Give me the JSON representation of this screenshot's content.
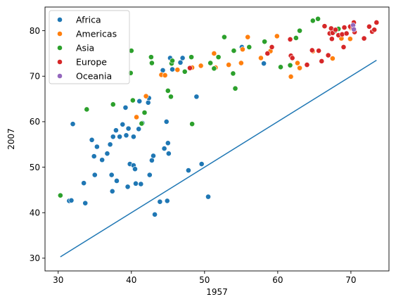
{
  "chart_data": {
    "type": "scatter",
    "xlabel": "1957",
    "ylabel": "2007",
    "xlim": [
      28.2,
      75.2
    ],
    "ylim": [
      27.2,
      85.2
    ],
    "xticks": [
      30,
      40,
      50,
      60,
      70
    ],
    "yticks": [
      30,
      40,
      50,
      60,
      70,
      80
    ],
    "grid": false,
    "legend_position": "top-left",
    "reference_line": {
      "x": [
        30.3,
        73.5
      ],
      "y": [
        30.3,
        73.5
      ],
      "color": "#1f77b4"
    },
    "series": [
      {
        "name": "Africa",
        "color": "#1f77b4",
        "points": [
          [
            31.5,
            42.6
          ],
          [
            31.8,
            42.7
          ],
          [
            32.0,
            59.5
          ],
          [
            33.5,
            46.5
          ],
          [
            33.7,
            42.1
          ],
          [
            34.6,
            56.0
          ],
          [
            34.9,
            52.4
          ],
          [
            35.0,
            48.3
          ],
          [
            35.3,
            54.5
          ],
          [
            36.0,
            51.6
          ],
          [
            36.7,
            53.0
          ],
          [
            37.1,
            55.0
          ],
          [
            37.3,
            48.3
          ],
          [
            37.4,
            44.7
          ],
          [
            37.5,
            56.7
          ],
          [
            37.9,
            58.1
          ],
          [
            38.0,
            47.0
          ],
          [
            38.4,
            56.7
          ],
          [
            38.8,
            59.4
          ],
          [
            39.2,
            63.1
          ],
          [
            39.3,
            57.0
          ],
          [
            39.5,
            45.7
          ],
          [
            39.6,
            58.5
          ],
          [
            39.8,
            50.7
          ],
          [
            40.3,
            56.7
          ],
          [
            40.3,
            50.4
          ],
          [
            40.5,
            49.6
          ],
          [
            40.6,
            46.4
          ],
          [
            41.0,
            58.4
          ],
          [
            41.1,
            64.5
          ],
          [
            41.3,
            46.3
          ],
          [
            41.5,
            59.7
          ],
          [
            42.3,
            64.2
          ],
          [
            42.4,
            65.2
          ],
          [
            42.5,
            48.3
          ],
          [
            42.8,
            51.5
          ],
          [
            43.0,
            52.5
          ],
          [
            43.2,
            39.6
          ],
          [
            43.9,
            42.4
          ],
          [
            44.3,
            71.3
          ],
          [
            44.5,
            54.1
          ],
          [
            44.8,
            60.0
          ],
          [
            44.9,
            42.6
          ],
          [
            45.0,
            55.3
          ],
          [
            45.1,
            53.0
          ],
          [
            45.3,
            74.0
          ],
          [
            45.6,
            71.5
          ],
          [
            46.7,
            73.0
          ],
          [
            47.0,
            74.0
          ],
          [
            47.8,
            49.3
          ],
          [
            48.9,
            65.5
          ],
          [
            49.6,
            50.7
          ],
          [
            50.5,
            43.5
          ],
          [
            55.1,
            76.4
          ],
          [
            58.1,
            72.8
          ]
        ]
      },
      {
        "name": "Americas",
        "color": "#ff7f0e",
        "points": [
          [
            40.7,
            61.0
          ],
          [
            42.0,
            65.6
          ],
          [
            44.1,
            70.3
          ],
          [
            44.6,
            70.2
          ],
          [
            45.5,
            73.0
          ],
          [
            46.3,
            71.4
          ],
          [
            48.3,
            71.9
          ],
          [
            49.5,
            72.3
          ],
          [
            51.3,
            75.0
          ],
          [
            51.5,
            71.9
          ],
          [
            53.3,
            72.5
          ],
          [
            55.0,
            72.9
          ],
          [
            55.2,
            75.9
          ],
          [
            55.9,
            78.6
          ],
          [
            57.7,
            74.0
          ],
          [
            59.0,
            75.5
          ],
          [
            59.9,
            78.8
          ],
          [
            61.8,
            69.9
          ],
          [
            62.7,
            72.9
          ],
          [
            63.0,
            71.8
          ],
          [
            64.8,
            75.5
          ],
          [
            67.5,
            73.9
          ],
          [
            68.7,
            78.3
          ],
          [
            69.9,
            78.2
          ],
          [
            70.0,
            80.6
          ]
        ]
      },
      {
        "name": "Asia",
        "color": "#2ca02c",
        "points": [
          [
            30.3,
            43.8
          ],
          [
            33.9,
            62.7
          ],
          [
            37.5,
            63.8
          ],
          [
            39.9,
            70.7
          ],
          [
            40.0,
            75.6
          ],
          [
            40.2,
            64.7
          ],
          [
            41.4,
            59.6
          ],
          [
            41.8,
            62.0
          ],
          [
            42.7,
            74.2
          ],
          [
            42.8,
            72.9
          ],
          [
            45.0,
            66.8
          ],
          [
            45.4,
            65.5
          ],
          [
            45.5,
            72.8
          ],
          [
            45.6,
            73.4
          ],
          [
            47.3,
            71.0
          ],
          [
            48.2,
            74.2
          ],
          [
            48.3,
            59.5
          ],
          [
            50.8,
            72.9
          ],
          [
            51.3,
            71.7
          ],
          [
            51.9,
            74.2
          ],
          [
            52.7,
            78.6
          ],
          [
            53.9,
            70.6
          ],
          [
            54.0,
            75.6
          ],
          [
            54.2,
            67.3
          ],
          [
            56.1,
            76.4
          ],
          [
            58.2,
            77.6
          ],
          [
            60.4,
            72.0
          ],
          [
            61.7,
            72.4
          ],
          [
            62.5,
            78.4
          ],
          [
            63.0,
            80.0
          ],
          [
            64.8,
            82.2
          ],
          [
            65.5,
            82.6
          ],
          [
            67.8,
            79.9
          ],
          [
            68.3,
            80.4
          ]
        ]
      },
      {
        "name": "Europe",
        "color": "#d62728",
        "points": [
          [
            48.0,
            71.8
          ],
          [
            58.6,
            75.0
          ],
          [
            59.2,
            76.4
          ],
          [
            61.7,
            78.1
          ],
          [
            61.8,
            74.5
          ],
          [
            62.0,
            74.0
          ],
          [
            64.0,
            72.5
          ],
          [
            64.7,
            75.7
          ],
          [
            65.6,
            75.6
          ],
          [
            66.0,
            73.3
          ],
          [
            66.4,
            81.0
          ],
          [
            66.9,
            74.6
          ],
          [
            67.1,
            79.4
          ],
          [
            67.3,
            80.5
          ],
          [
            67.4,
            78.2
          ],
          [
            67.5,
            79.5
          ],
          [
            67.9,
            80.2
          ],
          [
            68.3,
            79.0
          ],
          [
            68.8,
            79.2
          ],
          [
            69.0,
            76.4
          ],
          [
            69.1,
            80.7
          ],
          [
            69.4,
            79.4
          ],
          [
            69.9,
            80.9
          ],
          [
            70.3,
            80.5
          ],
          [
            70.4,
            81.8
          ],
          [
            70.5,
            79.7
          ],
          [
            71.8,
            78.3
          ],
          [
            72.5,
            80.9
          ],
          [
            72.9,
            79.8
          ],
          [
            73.2,
            80.2
          ],
          [
            73.5,
            81.8
          ]
        ]
      },
      {
        "name": "Oceania",
        "color": "#9467bd",
        "points": [
          [
            70.3,
            81.2
          ],
          [
            70.4,
            80.3
          ]
        ]
      }
    ]
  }
}
